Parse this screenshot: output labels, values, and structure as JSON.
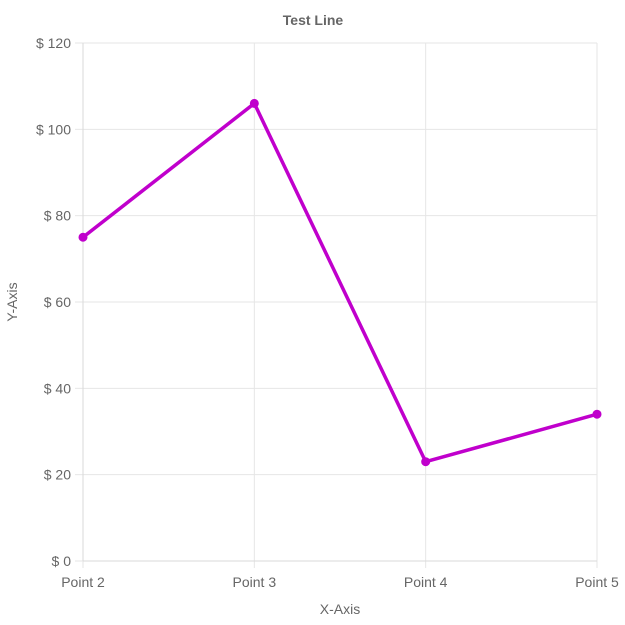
{
  "chart_data": {
    "type": "line",
    "title": "Test Line",
    "xlabel": "X-Axis",
    "ylabel": "Y-Axis",
    "categories": [
      "Point 2",
      "Point 3",
      "Point 4",
      "Point 5"
    ],
    "series": [
      {
        "values": [
          75,
          106,
          23,
          34
        ],
        "color": "#c000cc"
      }
    ],
    "ylim": [
      0,
      120
    ],
    "yticks": [
      0,
      20,
      40,
      60,
      80,
      100,
      120
    ],
    "ytick_labels": [
      "$ 0",
      "$ 20",
      "$ 40",
      "$ 60",
      "$ 80",
      "$ 100",
      "$ 120"
    ],
    "grid": true,
    "legend": "none"
  }
}
